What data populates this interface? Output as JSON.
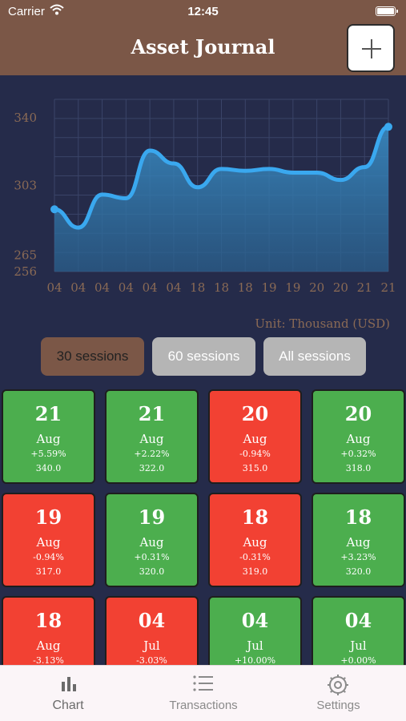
{
  "status_bar": {
    "carrier": "Carrier",
    "time": "12:45"
  },
  "header": {
    "title": "Asset Journal"
  },
  "colors": {
    "header": "#7b5747",
    "background": "#252b4a",
    "up": "#4cae4e",
    "down": "#f24133",
    "line": "#3aa8ef"
  },
  "chart_data": {
    "type": "area",
    "x": [
      "04",
      "04",
      "04",
      "04",
      "04",
      "04",
      "18",
      "18",
      "18",
      "19",
      "19",
      "20",
      "20",
      "21",
      "21"
    ],
    "series": [
      {
        "values": [
          290,
          280,
          298,
          296,
          322,
          315,
          302,
          312,
          311,
          312,
          310,
          310,
          306,
          313,
          335
        ]
      }
    ],
    "ytick_labels": [
      "340",
      "303",
      "265",
      "256"
    ],
    "unit_label": "Unit: Thousand (USD)",
    "grid": true
  },
  "sessions": {
    "options": [
      "30 sessions",
      "60 sessions",
      "All sessions"
    ],
    "selected": "30 sessions"
  },
  "tiles": [
    {
      "day": "21",
      "month": "Aug",
      "change": "+5.59%",
      "value": "340.0",
      "trend": "up"
    },
    {
      "day": "21",
      "month": "Aug",
      "change": "+2.22%",
      "value": "322.0",
      "trend": "up"
    },
    {
      "day": "20",
      "month": "Aug",
      "change": "-0.94%",
      "value": "315.0",
      "trend": "down"
    },
    {
      "day": "20",
      "month": "Aug",
      "change": "+0.32%",
      "value": "318.0",
      "trend": "up"
    },
    {
      "day": "19",
      "month": "Aug",
      "change": "-0.94%",
      "value": "317.0",
      "trend": "down"
    },
    {
      "day": "19",
      "month": "Aug",
      "change": "+0.31%",
      "value": "320.0",
      "trend": "up"
    },
    {
      "day": "18",
      "month": "Aug",
      "change": "-0.31%",
      "value": "319.0",
      "trend": "down"
    },
    {
      "day": "18",
      "month": "Aug",
      "change": "+3.23%",
      "value": "320.0",
      "trend": "up"
    },
    {
      "day": "18",
      "month": "Aug",
      "change": "-3.13%",
      "value": "",
      "trend": "down"
    },
    {
      "day": "04",
      "month": "Jul",
      "change": "-3.03%",
      "value": "",
      "trend": "down"
    },
    {
      "day": "04",
      "month": "Jul",
      "change": "+10.00%",
      "value": "",
      "trend": "up"
    },
    {
      "day": "04",
      "month": "Jul",
      "change": "+0.00%",
      "value": "",
      "trend": "up"
    }
  ],
  "tabs": [
    {
      "label": "Chart",
      "icon": "bar-chart-icon",
      "active": true
    },
    {
      "label": "Transactions",
      "icon": "list-icon",
      "active": false
    },
    {
      "label": "Settings",
      "icon": "gear-icon",
      "active": false
    }
  ]
}
